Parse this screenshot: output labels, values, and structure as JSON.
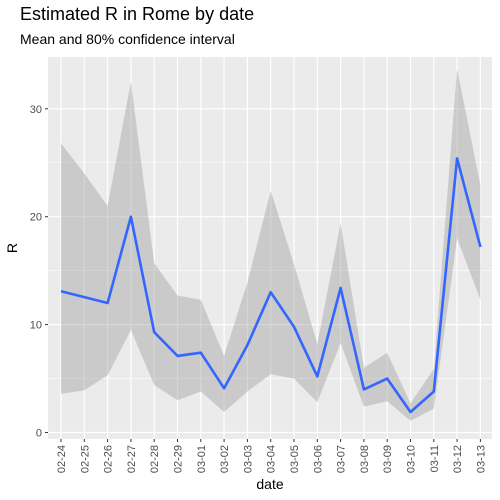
{
  "chart_data": {
    "type": "line",
    "title": "Estimated R in Rome by date",
    "subtitle": "Mean and 80% confidence interval",
    "xlabel": "date",
    "ylabel": "R",
    "ylim": [
      -0.6,
      34.8
    ],
    "yticks": [
      0,
      10,
      20,
      30
    ],
    "grid": true,
    "categories": [
      "02-24",
      "02-25",
      "02-26",
      "02-27",
      "02-28",
      "02-29",
      "03-01",
      "03-02",
      "03-03",
      "03-04",
      "03-05",
      "03-06",
      "03-07",
      "03-08",
      "03-09",
      "03-10",
      "03-11",
      "03-12",
      "03-13"
    ],
    "series": [
      {
        "values": [
          13.1,
          null,
          12.0,
          20.0,
          9.3,
          7.1,
          7.4,
          4.1,
          8.1,
          13.0,
          9.8,
          5.2,
          13.4,
          4.0,
          5.0,
          1.9,
          3.8,
          25.4,
          17.2
        ],
        "lower": [
          3.6,
          3.9,
          5.3,
          9.5,
          4.4,
          3.0,
          3.8,
          1.9,
          3.8,
          5.4,
          5.0,
          2.8,
          8.3,
          2.4,
          2.9,
          1.1,
          2.2,
          18.0,
          12.3
        ],
        "upper": [
          26.8,
          24.0,
          21.0,
          32.5,
          15.7,
          12.7,
          12.3,
          7.1,
          13.9,
          22.4,
          15.6,
          8.2,
          19.4,
          6.0,
          7.4,
          2.7,
          5.9,
          33.7,
          22.9
        ]
      }
    ],
    "colors": {
      "line": "#3366ff",
      "ribbon": "#999999",
      "panel": "#ebebeb"
    }
  }
}
